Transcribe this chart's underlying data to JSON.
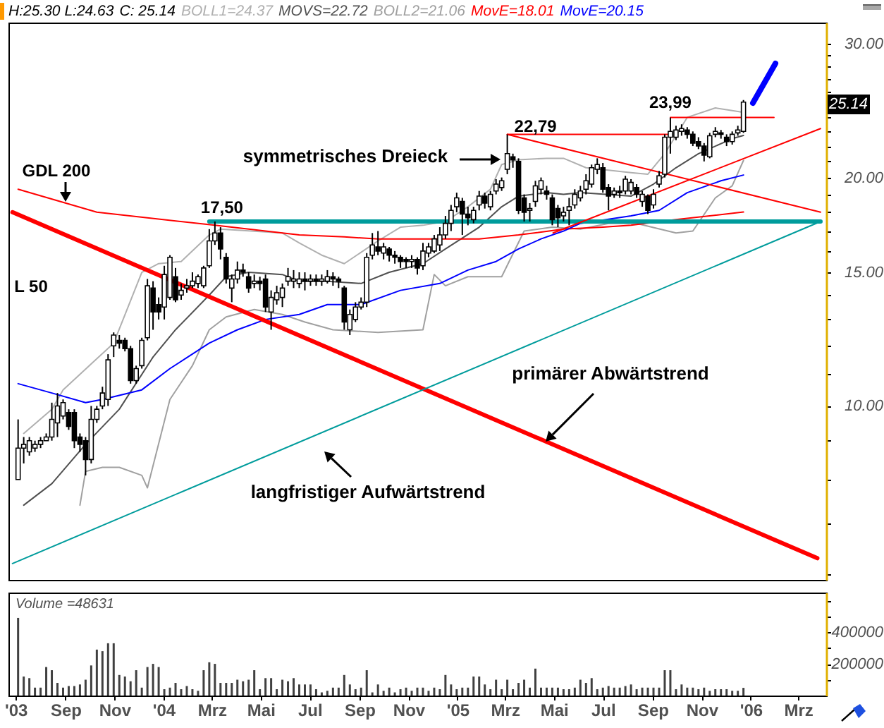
{
  "chart_data": [
    {
      "type": "candlestick",
      "x": [
        "2003-07-04",
        "2003-07-11",
        "2003-07-18",
        "2003-07-25",
        "2003-08-01",
        "2003-08-08",
        "2003-08-15",
        "2003-08-22",
        "2003-08-29",
        "2003-09-05",
        "2003-09-12",
        "2003-09-19",
        "2003-09-26",
        "2003-10-03",
        "2003-10-10",
        "2003-10-17",
        "2003-10-24",
        "2003-10-31",
        "2003-11-07",
        "2003-11-14",
        "2003-11-21",
        "2003-11-28",
        "2003-12-05",
        "2003-12-12",
        "2003-12-19",
        "2003-12-26",
        "2004-01-02",
        "2004-01-09",
        "2004-01-16",
        "2004-01-23",
        "2004-01-30",
        "2004-02-06",
        "2004-02-13",
        "2004-02-20",
        "2004-02-27",
        "2004-03-05",
        "2004-03-12",
        "2004-03-19",
        "2004-03-26",
        "2004-04-02",
        "2004-04-09",
        "2004-04-16",
        "2004-04-23",
        "2004-04-30",
        "2004-05-07",
        "2004-05-14",
        "2004-05-21",
        "2004-05-28",
        "2004-06-04",
        "2004-06-11",
        "2004-06-18",
        "2004-06-25",
        "2004-07-02",
        "2004-07-09",
        "2004-07-16",
        "2004-07-23",
        "2004-07-30",
        "2004-08-06",
        "2004-08-13",
        "2004-08-20",
        "2004-08-27",
        "2004-09-03",
        "2004-09-10",
        "2004-09-17",
        "2004-09-24",
        "2004-10-01",
        "2004-10-08",
        "2004-10-15",
        "2004-10-22",
        "2004-10-29",
        "2004-11-05",
        "2004-11-12",
        "2004-11-19",
        "2004-11-26",
        "2004-12-03",
        "2004-12-10",
        "2004-12-17",
        "2004-12-24",
        "2004-12-31",
        "2005-01-07",
        "2005-01-14",
        "2005-01-21",
        "2005-01-28",
        "2005-02-04",
        "2005-02-11",
        "2005-02-18",
        "2005-02-25",
        "2005-03-04",
        "2005-03-11",
        "2005-03-18",
        "2005-03-25",
        "2005-04-01",
        "2005-04-08",
        "2005-04-15",
        "2005-04-22",
        "2005-04-29",
        "2005-05-06",
        "2005-05-13",
        "2005-05-20",
        "2005-05-27",
        "2005-06-03",
        "2005-06-10",
        "2005-06-17",
        "2005-06-24",
        "2005-07-01",
        "2005-07-08",
        "2005-07-15",
        "2005-07-22",
        "2005-07-29",
        "2005-08-05",
        "2005-08-12",
        "2005-08-19",
        "2005-08-26",
        "2005-09-02",
        "2005-09-09",
        "2005-09-16",
        "2005-09-23",
        "2005-09-30",
        "2005-10-07",
        "2005-10-14",
        "2005-10-21",
        "2005-10-28",
        "2005-11-04",
        "2005-11-11",
        "2005-11-18",
        "2005-11-25",
        "2005-12-02",
        "2005-12-09",
        "2005-12-16",
        "2005-12-23"
      ],
      "ohlc": [
        [
          8.0,
          9.6,
          8.0,
          8.8
        ],
        [
          8.8,
          9.1,
          8.4,
          8.9
        ],
        [
          8.7,
          9.1,
          8.6,
          9.0
        ],
        [
          8.8,
          9.0,
          8.7,
          8.9
        ],
        [
          8.9,
          9.1,
          8.8,
          9.0
        ],
        [
          9.0,
          9.2,
          9.0,
          9.1
        ],
        [
          9.1,
          10.1,
          9.0,
          9.6
        ],
        [
          9.5,
          10.4,
          9.1,
          10.0
        ],
        [
          9.7,
          10.2,
          9.6,
          10.1
        ],
        [
          9.8,
          9.9,
          9.3,
          9.4
        ],
        [
          9.8,
          9.9,
          8.8,
          9.0
        ],
        [
          9.1,
          9.2,
          8.7,
          8.9
        ],
        [
          9.0,
          9.1,
          8.1,
          8.5
        ],
        [
          8.5,
          10.0,
          8.4,
          9.6
        ],
        [
          9.6,
          10.0,
          9.5,
          9.9
        ],
        [
          10.0,
          10.6,
          9.9,
          10.4
        ],
        [
          10.2,
          11.7,
          10.0,
          11.5
        ],
        [
          12.0,
          12.5,
          11.6,
          12.4
        ],
        [
          12.2,
          12.4,
          11.9,
          12.1
        ],
        [
          12.2,
          12.3,
          11.8,
          11.9
        ],
        [
          11.9,
          12.0,
          10.7,
          10.8
        ],
        [
          10.8,
          11.3,
          10.7,
          11.2
        ],
        [
          11.3,
          12.3,
          11.2,
          12.2
        ],
        [
          12.3,
          14.7,
          12.2,
          14.4
        ],
        [
          14.3,
          14.6,
          12.6,
          13.3
        ],
        [
          13.6,
          13.9,
          13.0,
          13.3
        ],
        [
          13.5,
          15.3,
          13.0,
          14.9
        ],
        [
          13.9,
          15.8,
          13.8,
          15.7
        ],
        [
          14.8,
          15.2,
          13.7,
          13.8
        ],
        [
          14.0,
          14.5,
          13.8,
          14.2
        ],
        [
          14.3,
          14.7,
          14.1,
          14.4
        ],
        [
          14.4,
          15.0,
          14.3,
          14.6
        ],
        [
          14.5,
          14.9,
          14.3,
          14.8
        ],
        [
          14.4,
          15.3,
          14.3,
          15.2
        ],
        [
          15.3,
          17.1,
          15.2,
          16.5
        ],
        [
          16.5,
          17.5,
          16.3,
          16.9
        ],
        [
          16.9,
          17.2,
          15.6,
          16.1
        ],
        [
          15.7,
          15.9,
          14.5,
          14.7
        ],
        [
          14.3,
          14.9,
          13.7,
          14.7
        ],
        [
          14.7,
          15.5,
          14.5,
          15.1
        ],
        [
          15.1,
          15.4,
          14.8,
          15.0
        ],
        [
          14.8,
          15.0,
          14.1,
          14.3
        ],
        [
          14.5,
          14.9,
          14.3,
          14.6
        ],
        [
          14.6,
          14.8,
          14.2,
          14.5
        ],
        [
          14.7,
          14.9,
          13.3,
          13.5
        ],
        [
          13.3,
          14.2,
          12.6,
          13.9
        ],
        [
          13.8,
          14.4,
          13.6,
          14.1
        ],
        [
          13.9,
          14.5,
          13.5,
          14.3
        ],
        [
          14.6,
          15.2,
          14.4,
          14.8
        ],
        [
          14.6,
          15.1,
          14.3,
          14.7
        ],
        [
          14.5,
          15.0,
          14.3,
          14.7
        ],
        [
          14.7,
          15.0,
          14.2,
          14.6
        ],
        [
          14.6,
          14.9,
          14.4,
          14.7
        ],
        [
          14.7,
          14.9,
          14.4,
          14.6
        ],
        [
          14.6,
          14.9,
          14.4,
          14.7
        ],
        [
          14.6,
          15.1,
          14.5,
          14.8
        ],
        [
          14.8,
          15.0,
          14.4,
          14.7
        ],
        [
          14.7,
          14.8,
          14.3,
          14.6
        ],
        [
          14.3,
          14.4,
          12.6,
          12.9
        ],
        [
          12.6,
          13.4,
          12.4,
          13.2
        ],
        [
          13.0,
          13.7,
          12.9,
          13.5
        ],
        [
          13.5,
          13.9,
          13.4,
          13.7
        ],
        [
          13.7,
          15.9,
          13.5,
          15.7
        ],
        [
          15.8,
          16.9,
          15.6,
          16.3
        ],
        [
          16.2,
          17.0,
          15.8,
          16.0
        ],
        [
          15.9,
          16.4,
          15.6,
          16.2
        ],
        [
          16.1,
          16.2,
          15.5,
          15.8
        ],
        [
          15.8,
          16.0,
          15.4,
          15.7
        ],
        [
          15.7,
          15.8,
          15.2,
          15.5
        ],
        [
          15.6,
          15.7,
          15.2,
          15.5
        ],
        [
          15.5,
          15.8,
          15.2,
          15.6
        ],
        [
          15.6,
          15.7,
          14.9,
          15.2
        ],
        [
          15.3,
          16.4,
          15.1,
          16.0
        ],
        [
          15.9,
          16.4,
          15.7,
          16.2
        ],
        [
          16.0,
          16.8,
          15.9,
          16.6
        ],
        [
          16.3,
          17.2,
          16.0,
          16.8
        ],
        [
          16.8,
          17.8,
          16.6,
          17.4
        ],
        [
          17.4,
          18.4,
          17.0,
          18.1
        ],
        [
          18.3,
          19.1,
          18.0,
          18.8
        ],
        [
          18.6,
          18.8,
          16.8,
          17.9
        ],
        [
          17.9,
          18.3,
          17.3,
          17.7
        ],
        [
          17.6,
          18.3,
          17.4,
          18.1
        ],
        [
          18.4,
          19.2,
          18.1,
          18.9
        ],
        [
          18.9,
          19.1,
          18.2,
          18.5
        ],
        [
          18.3,
          19.2,
          18.1,
          19.0
        ],
        [
          19.2,
          19.9,
          19.0,
          19.6
        ],
        [
          19.4,
          20.0,
          19.2,
          19.8
        ],
        [
          20.5,
          22.79,
          20.2,
          21.5
        ],
        [
          21.3,
          21.5,
          20.6,
          21.1
        ],
        [
          21.0,
          21.2,
          17.9,
          18.1
        ],
        [
          18.8,
          19.0,
          17.5,
          18.0
        ],
        [
          18.1,
          18.5,
          17.5,
          18.2
        ],
        [
          18.6,
          19.8,
          18.3,
          19.5
        ],
        [
          19.3,
          20.0,
          19.0,
          19.8
        ],
        [
          19.2,
          19.5,
          18.7,
          19.0
        ],
        [
          18.8,
          19.0,
          17.3,
          17.6
        ],
        [
          18.2,
          18.4,
          17.2,
          17.7
        ],
        [
          17.8,
          18.3,
          17.5,
          18.0
        ],
        [
          18.1,
          18.8,
          17.3,
          18.3
        ],
        [
          18.4,
          19.3,
          18.2,
          19.0
        ],
        [
          18.8,
          19.5,
          18.6,
          19.2
        ],
        [
          19.3,
          20.2,
          19.0,
          19.8
        ],
        [
          19.6,
          20.8,
          19.4,
          20.6
        ],
        [
          20.5,
          21.2,
          20.2,
          20.8
        ],
        [
          20.6,
          20.9,
          19.1,
          19.3
        ],
        [
          19.4,
          19.6,
          18.1,
          18.9
        ],
        [
          19.0,
          19.4,
          18.8,
          19.2
        ],
        [
          19.2,
          19.5,
          18.8,
          19.1
        ],
        [
          19.2,
          20.1,
          19.0,
          19.9
        ],
        [
          19.2,
          19.9,
          19.0,
          19.7
        ],
        [
          19.4,
          19.6,
          18.8,
          19.0
        ],
        [
          18.6,
          19.2,
          18.3,
          19.0
        ],
        [
          18.9,
          19.0,
          17.9,
          18.1
        ],
        [
          18.4,
          19.3,
          18.2,
          19.0
        ],
        [
          19.6,
          20.4,
          19.4,
          20.1
        ],
        [
          20.2,
          22.8,
          20.0,
          22.6
        ],
        [
          22.6,
          23.99,
          21.5,
          23.0
        ],
        [
          22.6,
          23.4,
          22.4,
          23.1
        ],
        [
          23.0,
          23.5,
          22.7,
          23.2
        ],
        [
          23.1,
          23.3,
          22.5,
          22.8
        ],
        [
          22.8,
          23.0,
          22.0,
          22.2
        ],
        [
          22.3,
          22.6,
          21.8,
          22.0
        ],
        [
          22.0,
          22.2,
          21.0,
          21.4
        ],
        [
          21.3,
          22.9,
          21.2,
          22.7
        ],
        [
          22.8,
          23.3,
          22.6,
          23.0
        ],
        [
          22.9,
          23.1,
          22.5,
          22.8
        ],
        [
          22.6,
          22.8,
          22.0,
          22.3
        ],
        [
          22.3,
          23.0,
          22.1,
          22.8
        ],
        [
          22.9,
          23.4,
          22.7,
          23.1
        ],
        [
          23.0,
          25.3,
          22.9,
          25.14
        ]
      ],
      "series": [
        {
          "name": "BOLL1=24.37",
          "type": "line",
          "color": "#b0b0b0",
          "x": [
            "2003-07-11",
            "2003-08-15",
            "2003-08-29",
            "2003-10-31",
            "2003-12-05",
            "2003-12-26",
            "2004-01-23",
            "2004-02-27",
            "2004-03-12",
            "2004-05-28",
            "2004-06-18",
            "2004-07-16",
            "2004-08-13",
            "2004-09-24",
            "2004-10-22",
            "2004-11-19",
            "2004-12-17",
            "2005-01-14",
            "2005-02-11",
            "2005-02-25",
            "2005-03-18",
            "2005-04-22",
            "2005-05-13",
            "2005-06-10",
            "2005-08-05",
            "2005-08-26",
            "2005-09-16",
            "2005-10-14",
            "2005-11-18",
            "2005-12-23"
          ],
          "values": [
            9.2,
            9.9,
            10.5,
            12.1,
            15.0,
            15.4,
            15.5,
            16.8,
            17.1,
            16.9,
            16.4,
            15.8,
            15.4,
            16.5,
            17.2,
            17.3,
            17.5,
            18.3,
            19.3,
            20.8,
            21.1,
            21.2,
            21.2,
            20.6,
            20.3,
            20.2,
            21.5,
            24.0,
            24.7,
            24.37
          ]
        },
        {
          "name": "MOVS=22.72",
          "type": "line",
          "color": "#505050",
          "x": [
            "2003-07-11",
            "2003-08-15",
            "2003-09-26",
            "2003-11-07",
            "2003-12-19",
            "2004-01-16",
            "2004-02-27",
            "2004-03-19",
            "2004-04-16",
            "2004-05-28",
            "2004-06-18",
            "2004-07-23",
            "2004-09-03",
            "2004-10-08",
            "2004-11-19",
            "2004-12-17",
            "2005-01-28",
            "2005-02-25",
            "2005-03-18",
            "2005-04-22",
            "2005-05-13",
            "2005-06-03",
            "2005-08-05",
            "2005-09-02",
            "2005-09-30",
            "2005-10-28",
            "2005-12-09",
            "2005-12-23"
          ],
          "values": [
            7.4,
            7.9,
            8.9,
            9.9,
            11.6,
            12.6,
            14.0,
            14.8,
            15.0,
            14.9,
            14.6,
            14.6,
            14.5,
            15.0,
            15.4,
            16.1,
            17.2,
            18.3,
            18.9,
            19.1,
            19.0,
            19.1,
            18.9,
            19.6,
            20.6,
            21.5,
            22.5,
            22.72
          ]
        },
        {
          "name": "BOLL2=21.06",
          "type": "line",
          "color": "#a0a0a0",
          "x": [
            "2003-09-19",
            "2003-09-26",
            "2003-10-17",
            "2003-11-07",
            "2003-12-05",
            "2003-12-12",
            "2004-01-09",
            "2004-02-06",
            "2004-02-27",
            "2004-03-19",
            "2004-04-23",
            "2004-05-28",
            "2004-06-25",
            "2004-07-30",
            "2004-09-24",
            "2004-11-19",
            "2004-12-03",
            "2004-12-17",
            "2005-01-14",
            "2005-02-25",
            "2005-03-25",
            "2005-04-29",
            "2005-06-03",
            "2005-07-08",
            "2005-08-12",
            "2005-09-30",
            "2005-10-21",
            "2005-11-18",
            "2005-12-09",
            "2005-12-23"
          ],
          "values": [
            7.4,
            8.2,
            8.3,
            8.3,
            8.1,
            7.8,
            10.2,
            11.3,
            12.6,
            13.1,
            13.4,
            13.2,
            12.9,
            12.6,
            12.5,
            12.6,
            14.9,
            14.4,
            14.8,
            14.8,
            17.0,
            17.2,
            17.1,
            17.4,
            17.4,
            16.9,
            17.0,
            18.8,
            19.5,
            21.06
          ]
        },
        {
          "name": "MovE=18.01",
          "type": "line",
          "color": "#ff0000",
          "x": [
            "2003-07-04",
            "2003-10-10",
            "2004-03-05",
            "2004-06-18",
            "2004-08-13",
            "2004-09-24",
            "2004-12-10",
            "2005-01-28",
            "2005-03-18",
            "2005-05-13",
            "2005-07-01",
            "2005-08-05",
            "2005-09-30",
            "2005-12-23"
          ],
          "values": [
            19.3,
            18.0,
            17.3,
            16.8,
            16.7,
            16.6,
            16.6,
            16.6,
            16.8,
            17.1,
            17.2,
            17.3,
            17.6,
            18.01
          ]
        },
        {
          "name": "MovE=20.15",
          "type": "line",
          "color": "#0000ff",
          "x": [
            "2003-07-04",
            "2003-08-15",
            "2003-09-26",
            "2003-10-17",
            "2003-12-05",
            "2004-01-09",
            "2004-02-27",
            "2004-04-02",
            "2004-05-07",
            "2004-06-18",
            "2004-07-23",
            "2004-09-03",
            "2004-10-22",
            "2004-12-10",
            "2005-01-14",
            "2005-02-18",
            "2005-03-18",
            "2005-04-15",
            "2005-05-13",
            "2005-06-03",
            "2005-08-05",
            "2005-09-09",
            "2005-10-14",
            "2005-11-25",
            "2005-12-23"
          ],
          "values": [
            10.7,
            10.4,
            10.1,
            10.2,
            10.5,
            11.2,
            12.1,
            12.6,
            13.0,
            13.2,
            13.6,
            13.6,
            14.2,
            14.5,
            15.1,
            15.5,
            16.1,
            16.6,
            17.0,
            17.4,
            17.8,
            18.1,
            19.1,
            19.8,
            20.15
          ]
        },
        {
          "type": "line",
          "color": "#ff0000",
          "x": [
            "2003-06-27",
            "2006-03-25"
          ],
          "values": [
            18.0,
            6.3
          ]
        },
        {
          "type": "line",
          "color": "#009c9c",
          "x": [
            "2003-06-27",
            "2006-03-29"
          ],
          "values": [
            6.2,
            17.5
          ]
        },
        {
          "type": "line",
          "color": "#009c9c",
          "x": [
            "2004-02-27",
            "2006-03-29"
          ],
          "values": [
            17.5,
            17.5
          ]
        },
        {
          "type": "line",
          "color": "#ff0000",
          "x": [
            "2005-03-04",
            "2005-09-23"
          ],
          "values": [
            22.79,
            22.79
          ]
        },
        {
          "type": "line",
          "color": "#ff0000",
          "x": [
            "2005-03-04",
            "2006-03-29"
          ],
          "values": [
            22.79,
            18.0
          ]
        },
        {
          "type": "line",
          "color": "#ff0000",
          "x": [
            "2005-04-30",
            "2006-03-29"
          ],
          "values": [
            16.9,
            23.2
          ]
        },
        {
          "type": "line",
          "color": "#ff0000",
          "x": [
            "2005-09-23",
            "2006-01-30"
          ],
          "values": [
            23.99,
            23.99
          ]
        }
      ],
      "xlim": [
        "2003-06-22",
        "2006-04-05"
      ],
      "ylim": [
        5.9,
        32
      ],
      "yticks": [
        {
          "value": 6,
          "label": null
        },
        {
          "value": 7,
          "label": null
        },
        {
          "value": 8,
          "label": null
        },
        {
          "value": 9,
          "label": null
        },
        {
          "value": 10,
          "label": "10.00"
        },
        {
          "value": 11,
          "label": null
        },
        {
          "value": 12,
          "label": null
        },
        {
          "value": 13,
          "label": null
        },
        {
          "value": 14,
          "label": null
        },
        {
          "value": 15,
          "label": "15.00"
        },
        {
          "value": 16,
          "label": null
        },
        {
          "value": 17,
          "label": null
        },
        {
          "value": 18,
          "label": null
        },
        {
          "value": 19,
          "label": null
        },
        {
          "value": 20,
          "label": "20.00"
        },
        {
          "value": 21,
          "label": null
        },
        {
          "value": 22,
          "label": null
        },
        {
          "value": 23,
          "label": null
        },
        {
          "value": 24,
          "label": null
        },
        {
          "value": 25,
          "label": null
        },
        {
          "value": 26,
          "label": null
        },
        {
          "value": 27,
          "label": null
        },
        {
          "value": 28,
          "label": null
        },
        {
          "value": 29,
          "label": null
        },
        {
          "value": 30,
          "label": "30.00"
        }
      ],
      "log": true,
      "legend": "top",
      "tick_labels": "y",
      "annotations": [
        {
          "text": "17,50",
          "x": "2004-03-05",
          "y": 17.5
        },
        {
          "text": "22,79",
          "x": "2005-03-04",
          "y": 22.79
        },
        {
          "text": "23,99",
          "x": "2005-09-23",
          "y": 23.99
        },
        "GDL 200",
        "L 50",
        "symmetrisches Dreieck",
        "primärer Abwärtstrend",
        "langfristiger Aufwärtstrend",
        "25.14",
        "H:25.30 L:24.63",
        "C: 25.14"
      ]
    },
    {
      "type": "bar",
      "title": "Volume =48631",
      "x": [
        "2003-07-04",
        "2003-07-11",
        "2003-07-18",
        "2003-07-25",
        "2003-08-01",
        "2003-08-08",
        "2003-08-15",
        "2003-08-22",
        "2003-08-29",
        "2003-09-05",
        "2003-09-12",
        "2003-09-19",
        "2003-09-26",
        "2003-10-03",
        "2003-10-10",
        "2003-10-17",
        "2003-10-24",
        "2003-10-31",
        "2003-11-07",
        "2003-11-14",
        "2003-11-21",
        "2003-11-28",
        "2003-12-05",
        "2003-12-12",
        "2003-12-19",
        "2003-12-26",
        "2004-01-02",
        "2004-01-09",
        "2004-01-16",
        "2004-01-23",
        "2004-01-30",
        "2004-02-06",
        "2004-02-13",
        "2004-02-20",
        "2004-02-27",
        "2004-03-05",
        "2004-03-12",
        "2004-03-19",
        "2004-03-26",
        "2004-04-02",
        "2004-04-09",
        "2004-04-16",
        "2004-04-23",
        "2004-04-30",
        "2004-05-07",
        "2004-05-14",
        "2004-05-21",
        "2004-05-28",
        "2004-06-04",
        "2004-06-11",
        "2004-06-18",
        "2004-06-25",
        "2004-07-02",
        "2004-07-09",
        "2004-07-16",
        "2004-07-23",
        "2004-07-30",
        "2004-08-06",
        "2004-08-13",
        "2004-08-20",
        "2004-08-27",
        "2004-09-03",
        "2004-09-10",
        "2004-09-17",
        "2004-09-24",
        "2004-10-01",
        "2004-10-08",
        "2004-10-15",
        "2004-10-22",
        "2004-10-29",
        "2004-11-05",
        "2004-11-12",
        "2004-11-19",
        "2004-11-26",
        "2004-12-03",
        "2004-12-10",
        "2004-12-17",
        "2004-12-24",
        "2004-12-31",
        "2005-01-07",
        "2005-01-14",
        "2005-01-21",
        "2005-01-28",
        "2005-02-04",
        "2005-02-11",
        "2005-02-18",
        "2005-02-25",
        "2005-03-04",
        "2005-03-11",
        "2005-03-18",
        "2005-03-25",
        "2005-04-01",
        "2005-04-08",
        "2005-04-15",
        "2005-04-22",
        "2005-04-29",
        "2005-05-06",
        "2005-05-13",
        "2005-05-20",
        "2005-05-27",
        "2005-06-03",
        "2005-06-10",
        "2005-06-17",
        "2005-06-24",
        "2005-07-01",
        "2005-07-08",
        "2005-07-15",
        "2005-07-22",
        "2005-07-29",
        "2005-08-05",
        "2005-08-12",
        "2005-08-19",
        "2005-08-26",
        "2005-09-02",
        "2005-09-09",
        "2005-09-16",
        "2005-09-23",
        "2005-09-30",
        "2005-10-07",
        "2005-10-14",
        "2005-10-21",
        "2005-10-28",
        "2005-11-04",
        "2005-11-11",
        "2005-11-18",
        "2005-11-25",
        "2005-12-02",
        "2005-12-09",
        "2005-12-16",
        "2005-12-23"
      ],
      "values": [
        490000,
        120000,
        110000,
        50000,
        50000,
        180000,
        160000,
        80000,
        50000,
        60000,
        60000,
        70000,
        100000,
        190000,
        290000,
        280000,
        330000,
        330000,
        130000,
        120000,
        90000,
        160000,
        50000,
        180000,
        200000,
        180000,
        40000,
        50000,
        80000,
        40000,
        60000,
        40000,
        30000,
        160000,
        210000,
        200000,
        80000,
        80000,
        80000,
        100000,
        90000,
        100000,
        160000,
        40000,
        110000,
        110000,
        40000,
        100000,
        90000,
        110000,
        70000,
        70000,
        70000,
        40000,
        20000,
        30000,
        50000,
        50000,
        130000,
        70000,
        40000,
        50000,
        160000,
        20000,
        70000,
        30000,
        50000,
        20000,
        40000,
        50000,
        30000,
        50000,
        50000,
        30000,
        50000,
        40000,
        130000,
        70000,
        40000,
        50000,
        50000,
        120000,
        120000,
        70000,
        40000,
        100000,
        40000,
        100000,
        40000,
        80000,
        100000,
        50000,
        170000,
        50000,
        50000,
        50000,
        50000,
        40000,
        40000,
        50000,
        100000,
        80000,
        110000,
        40000,
        50000,
        60000,
        50000,
        50000,
        60000,
        70000,
        40000,
        50000,
        50000,
        50000,
        50000,
        160000,
        160000,
        40000,
        70000,
        50000,
        50000,
        40000,
        50000,
        30000,
        40000,
        40000,
        40000,
        30000,
        30000,
        48631
      ],
      "color": "#404040",
      "xlim": [
        "2003-06-22",
        "2006-04-05"
      ],
      "xticks": [
        {
          "value": "2003-07-01",
          "label": "'03"
        },
        {
          "value": "2003-09-01",
          "label": "Sep"
        },
        {
          "value": "2003-11-01",
          "label": "Nov"
        },
        {
          "value": "2004-01-01",
          "label": "'04"
        },
        {
          "value": "2004-03-01",
          "label": "Mrz"
        },
        {
          "value": "2004-05-01",
          "label": "Mai"
        },
        {
          "value": "2004-07-01",
          "label": "Jul"
        },
        {
          "value": "2004-09-01",
          "label": "Sep"
        },
        {
          "value": "2004-11-01",
          "label": "Nov"
        },
        {
          "value": "2005-01-01",
          "label": "'05"
        },
        {
          "value": "2005-03-01",
          "label": "Mrz"
        },
        {
          "value": "2005-05-01",
          "label": "Mai"
        },
        {
          "value": "2005-07-01",
          "label": "Jul"
        },
        {
          "value": "2005-09-01",
          "label": "Sep"
        },
        {
          "value": "2005-11-01",
          "label": "Nov"
        },
        {
          "value": "2006-01-01",
          "label": "'06"
        },
        {
          "value": "2006-03-01",
          "label": "Mrz"
        }
      ],
      "ylim": [
        0,
        650000
      ],
      "yticks": [
        {
          "value": 100000,
          "label": null
        },
        200000,
        {
          "value": 300000,
          "label": null
        },
        400000,
        {
          "value": 500000,
          "label": null
        },
        {
          "value": 600000,
          "label": null
        }
      ]
    }
  ]
}
